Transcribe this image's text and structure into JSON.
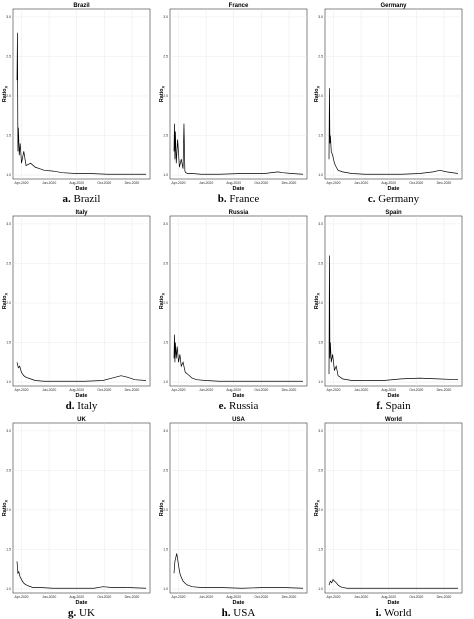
{
  "chart_data": [
    {
      "type": "line",
      "title": "Brazil",
      "xlabel": "Date",
      "ylabel": "Ratio",
      "ylabel_sub": "X",
      "caption_letter": "a.",
      "caption_text": "Brazil",
      "xticks": [
        "Apr-2020",
        "Jun-2020",
        "Aug-2020",
        "Oct-2020",
        "Dec-2020"
      ],
      "yticks": [
        "1.0",
        "1.5",
        "2.0",
        "2.5",
        "3.0"
      ],
      "ylim": [
        0.95,
        3.1
      ],
      "grid": true,
      "x": [
        0,
        1,
        2,
        3,
        5,
        7,
        10,
        15,
        20,
        30,
        40,
        50,
        60,
        80,
        100,
        130,
        160,
        200,
        240,
        270,
        285
      ],
      "y": [
        2.2,
        2.8,
        1.3,
        1.6,
        1.25,
        1.4,
        1.15,
        1.3,
        1.12,
        1.15,
        1.1,
        1.08,
        1.06,
        1.05,
        1.03,
        1.02,
        1.02,
        1.01,
        1.01,
        1.01,
        1.01
      ]
    },
    {
      "type": "line",
      "title": "France",
      "xlabel": "Date",
      "ylabel": "Ratio",
      "ylabel_sub": "X",
      "caption_letter": "b.",
      "caption_text": "France",
      "xticks": [
        "Apr-2020",
        "Jun-2020",
        "Aug-2020",
        "Oct-2020",
        "Dec-2020"
      ],
      "yticks": [
        "1.0",
        "1.5",
        "2.0",
        "2.5",
        "3.0"
      ],
      "ylim": [
        0.95,
        3.1
      ],
      "grid": true,
      "x": [
        0,
        1,
        2,
        3,
        5,
        8,
        12,
        16,
        20,
        22,
        24,
        26,
        30,
        40,
        60,
        100,
        150,
        200,
        230,
        240,
        260,
        285
      ],
      "y": [
        1.3,
        1.65,
        1.2,
        1.55,
        1.15,
        1.45,
        1.1,
        1.2,
        1.08,
        1.65,
        1.05,
        1.03,
        1.02,
        1.02,
        1.01,
        1.01,
        1.02,
        1.02,
        1.04,
        1.03,
        1.02,
        1.01
      ]
    },
    {
      "type": "line",
      "title": "Germany",
      "xlabel": "Date",
      "ylabel": "Ratio",
      "ylabel_sub": "X",
      "caption_letter": "c.",
      "caption_text": "Germany",
      "xticks": [
        "Apr-2020",
        "Jun-2020",
        "Aug-2020",
        "Oct-2020",
        "Dec-2020"
      ],
      "yticks": [
        "1.0",
        "1.5",
        "2.0",
        "2.5",
        "3.0"
      ],
      "ylim": [
        0.95,
        3.1
      ],
      "grid": true,
      "x": [
        0,
        1,
        2,
        3,
        5,
        8,
        12,
        16,
        20,
        30,
        50,
        80,
        120,
        160,
        200,
        230,
        245,
        260,
        285
      ],
      "y": [
        1.2,
        2.1,
        1.4,
        1.5,
        1.3,
        1.25,
        1.15,
        1.1,
        1.06,
        1.04,
        1.02,
        1.01,
        1.01,
        1.01,
        1.02,
        1.04,
        1.06,
        1.04,
        1.02
      ]
    },
    {
      "type": "line",
      "title": "Italy",
      "xlabel": "Date",
      "ylabel": "Ratio",
      "ylabel_sub": "X",
      "caption_letter": "d.",
      "caption_text": "Italy",
      "xticks": [
        "Apr-2020",
        "Jun-2020",
        "Aug-2020",
        "Oct-2020",
        "Dec-2020"
      ],
      "yticks": [
        "1.0",
        "1.5",
        "2.0",
        "2.5",
        "3.0"
      ],
      "ylim": [
        0.95,
        3.1
      ],
      "grid": true,
      "x": [
        0,
        3,
        6,
        10,
        15,
        20,
        30,
        40,
        60,
        100,
        150,
        190,
        210,
        230,
        245,
        260,
        285
      ],
      "y": [
        1.25,
        1.18,
        1.2,
        1.12,
        1.08,
        1.06,
        1.04,
        1.02,
        1.01,
        1.01,
        1.01,
        1.02,
        1.05,
        1.08,
        1.06,
        1.03,
        1.02
      ]
    },
    {
      "type": "line",
      "title": "Russia",
      "xlabel": "Date",
      "ylabel": "Ratio",
      "ylabel_sub": "X",
      "caption_letter": "e.",
      "caption_text": "Russia",
      "xticks": [
        "Apr-2020",
        "Jun-2020",
        "Aug-2020",
        "Oct-2020",
        "Dec-2020"
      ],
      "yticks": [
        "1.0",
        "1.5",
        "2.0",
        "2.5",
        "3.0"
      ],
      "ylim": [
        0.95,
        3.1
      ],
      "grid": true,
      "x": [
        0,
        1,
        2,
        3,
        5,
        7,
        10,
        13,
        16,
        20,
        25,
        30,
        40,
        50,
        70,
        100,
        150,
        200,
        285
      ],
      "y": [
        1.3,
        1.6,
        1.25,
        1.5,
        1.3,
        1.45,
        1.25,
        1.35,
        1.2,
        1.25,
        1.12,
        1.1,
        1.05,
        1.03,
        1.02,
        1.01,
        1.01,
        1.01,
        1.01
      ]
    },
    {
      "type": "line",
      "title": "Spain",
      "xlabel": "Date",
      "ylabel": "Ratio",
      "ylabel_sub": "X",
      "caption_letter": "f.",
      "caption_text": "Spain",
      "xticks": [
        "Apr-2020",
        "Jun-2020",
        "Aug-2020",
        "Oct-2020",
        "Dec-2020"
      ],
      "yticks": [
        "1.0",
        "1.5",
        "2.0",
        "2.5",
        "3.0"
      ],
      "ylim": [
        0.95,
        3.1
      ],
      "grid": true,
      "x": [
        0,
        1,
        2,
        3,
        5,
        8,
        12,
        16,
        20,
        30,
        50,
        80,
        120,
        160,
        200,
        240,
        285
      ],
      "y": [
        1.1,
        2.6,
        1.3,
        1.5,
        1.25,
        1.35,
        1.15,
        1.2,
        1.08,
        1.04,
        1.02,
        1.02,
        1.02,
        1.04,
        1.05,
        1.04,
        1.03
      ]
    },
    {
      "type": "line",
      "title": "UK",
      "xlabel": "Date",
      "ylabel": "Ratio",
      "ylabel_sub": "X",
      "caption_letter": "g.",
      "caption_text": "UK",
      "xticks": [
        "Apr-2020",
        "Jun-2020",
        "Aug-2020",
        "Oct-2020",
        "Dec-2020"
      ],
      "yticks": [
        "1.0",
        "1.5",
        "2.0",
        "2.5",
        "3.0"
      ],
      "ylim": [
        0.95,
        3.1
      ],
      "grid": true,
      "x": [
        0,
        2,
        4,
        7,
        10,
        14,
        18,
        25,
        35,
        50,
        80,
        120,
        170,
        190,
        210,
        240,
        285
      ],
      "y": [
        1.35,
        1.2,
        1.22,
        1.15,
        1.12,
        1.08,
        1.06,
        1.04,
        1.02,
        1.02,
        1.01,
        1.01,
        1.01,
        1.03,
        1.02,
        1.02,
        1.01
      ]
    },
    {
      "type": "line",
      "title": "USA",
      "xlabel": "Date",
      "ylabel": "Ratio",
      "ylabel_sub": "X",
      "caption_letter": "h.",
      "caption_text": "USA",
      "xticks": [
        "Apr-2020",
        "Jun-2020",
        "Aug-2020",
        "Oct-2020",
        "Dec-2020"
      ],
      "yticks": [
        "1.0",
        "1.5",
        "2.0",
        "2.5",
        "3.0"
      ],
      "ylim": [
        0.95,
        3.1
      ],
      "grid": true,
      "x": [
        0,
        2,
        4,
        6,
        8,
        10,
        13,
        16,
        20,
        25,
        30,
        40,
        60,
        100,
        150,
        200,
        240,
        285
      ],
      "y": [
        1.2,
        1.35,
        1.4,
        1.45,
        1.38,
        1.3,
        1.2,
        1.15,
        1.1,
        1.07,
        1.05,
        1.03,
        1.02,
        1.02,
        1.01,
        1.02,
        1.02,
        1.01
      ]
    },
    {
      "type": "line",
      "title": "World",
      "xlabel": "Date",
      "ylabel": "Ratio",
      "ylabel_sub": "X",
      "caption_letter": "i.",
      "caption_text": "World",
      "xticks": [
        "Apr-2020",
        "Jun-2020",
        "Aug-2020",
        "Oct-2020",
        "Dec-2020"
      ],
      "yticks": [
        "1.0",
        "1.5",
        "2.0",
        "2.5",
        "3.0"
      ],
      "ylim": [
        0.95,
        3.1
      ],
      "grid": true,
      "x": [
        0,
        3,
        6,
        9,
        12,
        16,
        20,
        25,
        30,
        40,
        60,
        100,
        150,
        200,
        250,
        285
      ],
      "y": [
        1.05,
        1.1,
        1.08,
        1.12,
        1.1,
        1.08,
        1.05,
        1.03,
        1.02,
        1.01,
        1.01,
        1.01,
        1.01,
        1.01,
        1.01,
        1.01
      ]
    }
  ]
}
